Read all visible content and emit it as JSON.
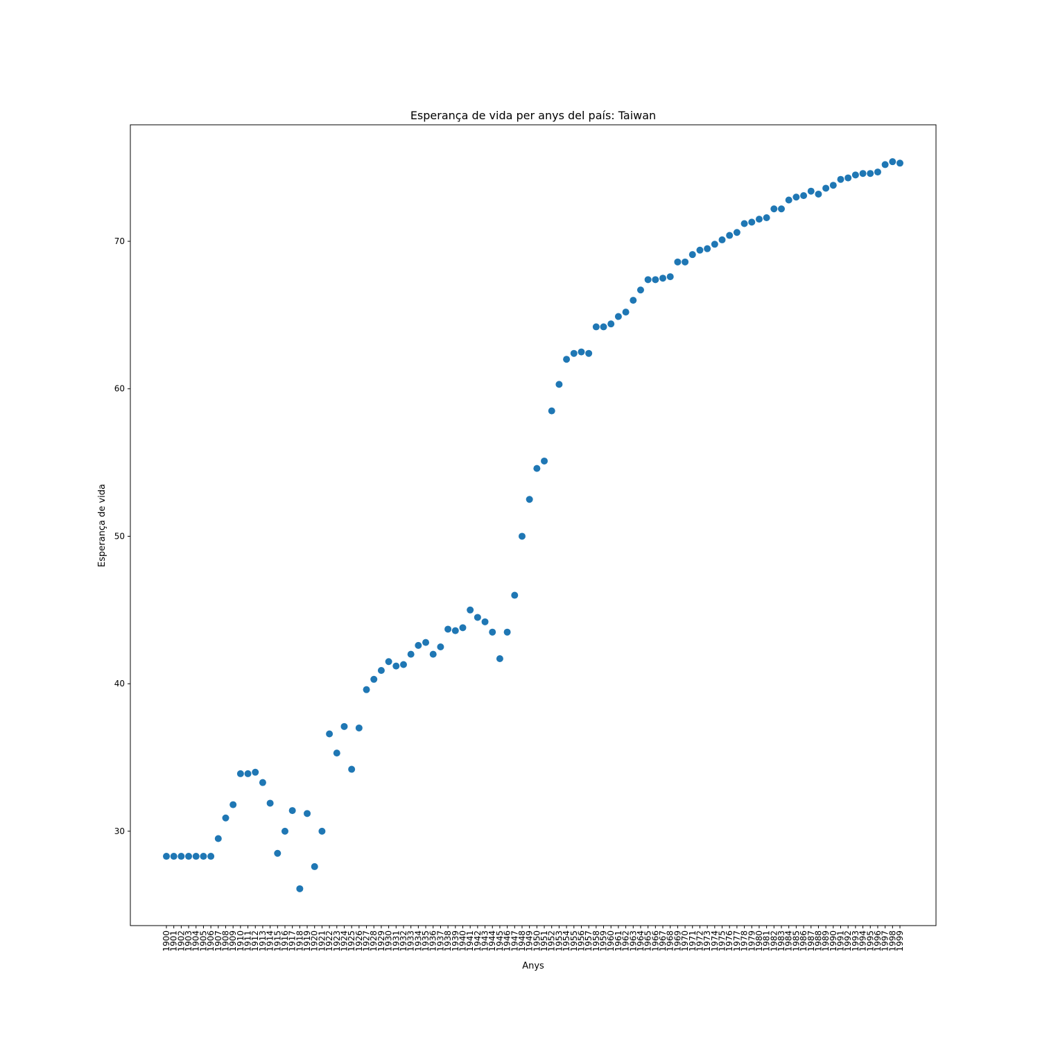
{
  "chart_data": {
    "type": "scatter",
    "title": "Esperança de vida per anys del país: Taiwan",
    "xlabel": "Anys",
    "ylabel": "Esperança de vida",
    "yticks": [
      30,
      40,
      50,
      60,
      70
    ],
    "ylim": [
      23.6,
      77.9
    ],
    "grid": false,
    "marker_color": "#1f77b4",
    "x": [
      1900,
      1901,
      1902,
      1903,
      1904,
      1905,
      1906,
      1907,
      1908,
      1909,
      1910,
      1911,
      1912,
      1913,
      1914,
      1915,
      1916,
      1917,
      1918,
      1919,
      1920,
      1921,
      1922,
      1923,
      1924,
      1925,
      1926,
      1927,
      1928,
      1929,
      1930,
      1931,
      1932,
      1933,
      1934,
      1935,
      1936,
      1937,
      1938,
      1939,
      1940,
      1941,
      1942,
      1943,
      1944,
      1945,
      1946,
      1947,
      1948,
      1949,
      1950,
      1951,
      1952,
      1953,
      1954,
      1955,
      1956,
      1957,
      1958,
      1959,
      1960,
      1961,
      1962,
      1963,
      1964,
      1965,
      1966,
      1967,
      1968,
      1969,
      1970,
      1971,
      1972,
      1973,
      1974,
      1975,
      1976,
      1977,
      1978,
      1979,
      1980,
      1981,
      1982,
      1983,
      1984,
      1985,
      1986,
      1987,
      1988,
      1989,
      1990,
      1991,
      1992,
      1993,
      1994,
      1995,
      1996,
      1997,
      1998,
      1999
    ],
    "y": [
      28.3,
      28.3,
      28.3,
      28.3,
      28.3,
      28.3,
      28.3,
      29.5,
      30.9,
      31.8,
      33.9,
      33.9,
      34.0,
      33.3,
      31.9,
      28.5,
      30.0,
      31.4,
      26.1,
      31.2,
      27.6,
      30.0,
      36.6,
      35.3,
      37.1,
      34.2,
      37.0,
      39.6,
      40.3,
      40.9,
      41.5,
      41.2,
      41.3,
      42.0,
      42.6,
      42.8,
      42.0,
      42.5,
      43.7,
      43.6,
      43.8,
      45.0,
      44.5,
      44.2,
      43.5,
      41.7,
      43.5,
      46.0,
      50.0,
      52.5,
      54.6,
      55.1,
      58.5,
      60.3,
      62.0,
      62.4,
      62.5,
      62.4,
      64.2,
      64.2,
      64.4,
      64.9,
      65.2,
      66.0,
      66.7,
      67.4,
      67.4,
      67.5,
      67.6,
      68.6,
      68.6,
      69.1,
      69.4,
      69.5,
      69.8,
      70.1,
      70.4,
      70.6,
      71.2,
      71.3,
      71.5,
      71.6,
      72.2,
      72.2,
      72.8,
      73.0,
      73.1,
      73.4,
      73.2,
      73.6,
      73.8,
      74.2,
      74.3,
      74.5,
      74.6,
      74.6,
      74.7,
      75.2,
      75.4,
      75.3
    ]
  }
}
